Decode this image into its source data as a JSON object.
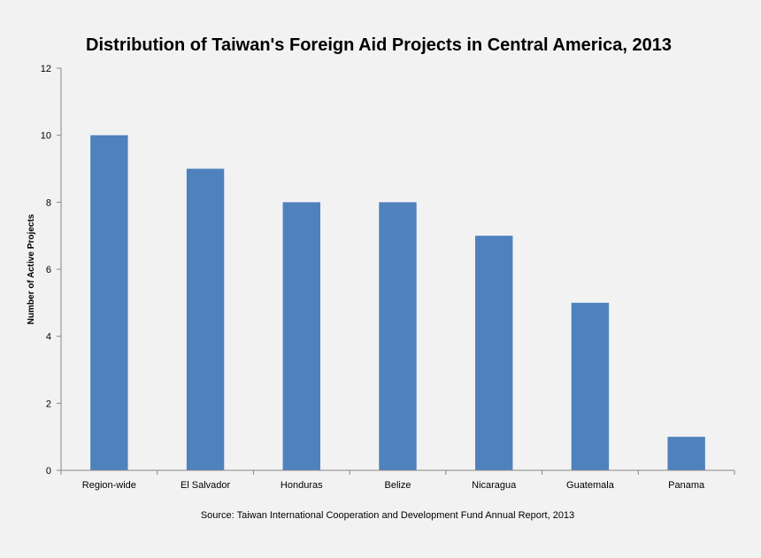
{
  "chart_data": {
    "type": "bar",
    "title": "Distribution of Taiwan's Foreign Aid Projects in Central America, 2013",
    "xlabel": "",
    "ylabel": "Number of Active Projects",
    "categories": [
      "Region-wide",
      "El Salvador",
      "Honduras",
      "Belize",
      "Nicaragua",
      "Guatemala",
      "Panama"
    ],
    "values": [
      10,
      9,
      8,
      8,
      7,
      5,
      1
    ],
    "ylim": [
      0,
      12
    ],
    "yticks": [
      0,
      2,
      4,
      6,
      8,
      10,
      12
    ],
    "grid": false,
    "legend": "none",
    "bar_color": "#4f81bd",
    "source": "Source: Taiwan International Cooperation and Development Fund Annual Report, 2013"
  }
}
